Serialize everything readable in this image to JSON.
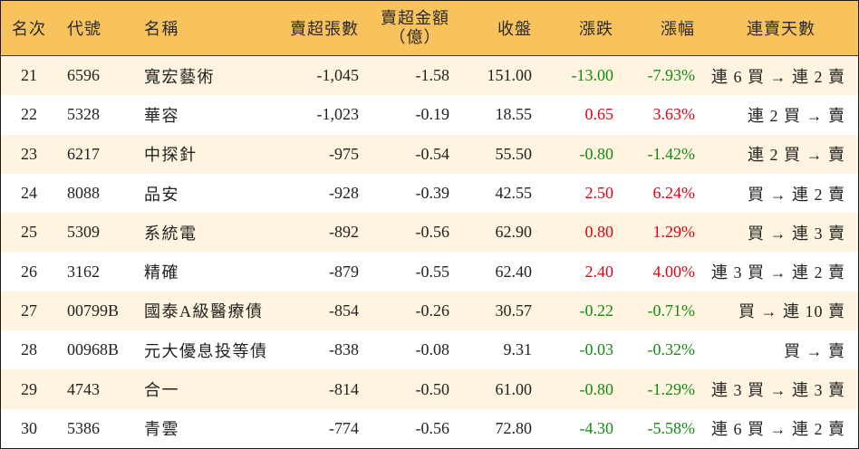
{
  "columns": {
    "rank": "名次",
    "code": "代號",
    "name": "名稱",
    "sell_lots": "賣超張數",
    "sell_amount_line1": "賣超金額",
    "sell_amount_line2": "（億）",
    "close": "收盤",
    "change": "漲跌",
    "change_pct": "漲幅",
    "streak": "連賣天數"
  },
  "colors": {
    "header_bg": "#F8C25D",
    "row_alt": "#FEF4DF",
    "up": "#E60012",
    "down": "#138A13",
    "text": "#222222",
    "border": "#1A1A1A"
  },
  "rows": [
    {
      "rank": "21",
      "code": "6596",
      "name": "寬宏藝術",
      "sell_lots": "-1,045",
      "sell_amount": "-1.58",
      "close": "151.00",
      "change": "-13.00",
      "change_pct": "-7.93%",
      "streak": "連 6 買 → 連 2 賣"
    },
    {
      "rank": "22",
      "code": "5328",
      "name": "華容",
      "sell_lots": "-1,023",
      "sell_amount": "-0.19",
      "close": "18.55",
      "change": "0.65",
      "change_pct": "3.63%",
      "streak": "連 2 買 → 賣"
    },
    {
      "rank": "23",
      "code": "6217",
      "name": "中探針",
      "sell_lots": "-975",
      "sell_amount": "-0.54",
      "close": "55.50",
      "change": "-0.80",
      "change_pct": "-1.42%",
      "streak": "連 2 買 → 賣"
    },
    {
      "rank": "24",
      "code": "8088",
      "name": "品安",
      "sell_lots": "-928",
      "sell_amount": "-0.39",
      "close": "42.55",
      "change": "2.50",
      "change_pct": "6.24%",
      "streak": "買 → 連 2 賣"
    },
    {
      "rank": "25",
      "code": "5309",
      "name": "系統電",
      "sell_lots": "-892",
      "sell_amount": "-0.56",
      "close": "62.90",
      "change": "0.80",
      "change_pct": "1.29%",
      "streak": "買 → 連 3 賣"
    },
    {
      "rank": "26",
      "code": "3162",
      "name": "精確",
      "sell_lots": "-879",
      "sell_amount": "-0.55",
      "close": "62.40",
      "change": "2.40",
      "change_pct": "4.00%",
      "streak": "連 3 買 → 連 2 賣"
    },
    {
      "rank": "27",
      "code": "00799B",
      "name": "國泰A級醫療債",
      "sell_lots": "-854",
      "sell_amount": "-0.26",
      "close": "30.57",
      "change": "-0.22",
      "change_pct": "-0.71%",
      "streak": "買 → 連 10 賣"
    },
    {
      "rank": "28",
      "code": "00968B",
      "name": "元大優息投等債",
      "sell_lots": "-838",
      "sell_amount": "-0.08",
      "close": "9.31",
      "change": "-0.03",
      "change_pct": "-0.32%",
      "streak": "買 → 賣"
    },
    {
      "rank": "29",
      "code": "4743",
      "name": "合一",
      "sell_lots": "-814",
      "sell_amount": "-0.50",
      "close": "61.00",
      "change": "-0.80",
      "change_pct": "-1.29%",
      "streak": "連 3 買 → 連 3 賣"
    },
    {
      "rank": "30",
      "code": "5386",
      "name": "青雲",
      "sell_lots": "-774",
      "sell_amount": "-0.56",
      "close": "72.80",
      "change": "-4.30",
      "change_pct": "-5.58%",
      "streak": "連 6 買 → 連 2 賣"
    }
  ]
}
